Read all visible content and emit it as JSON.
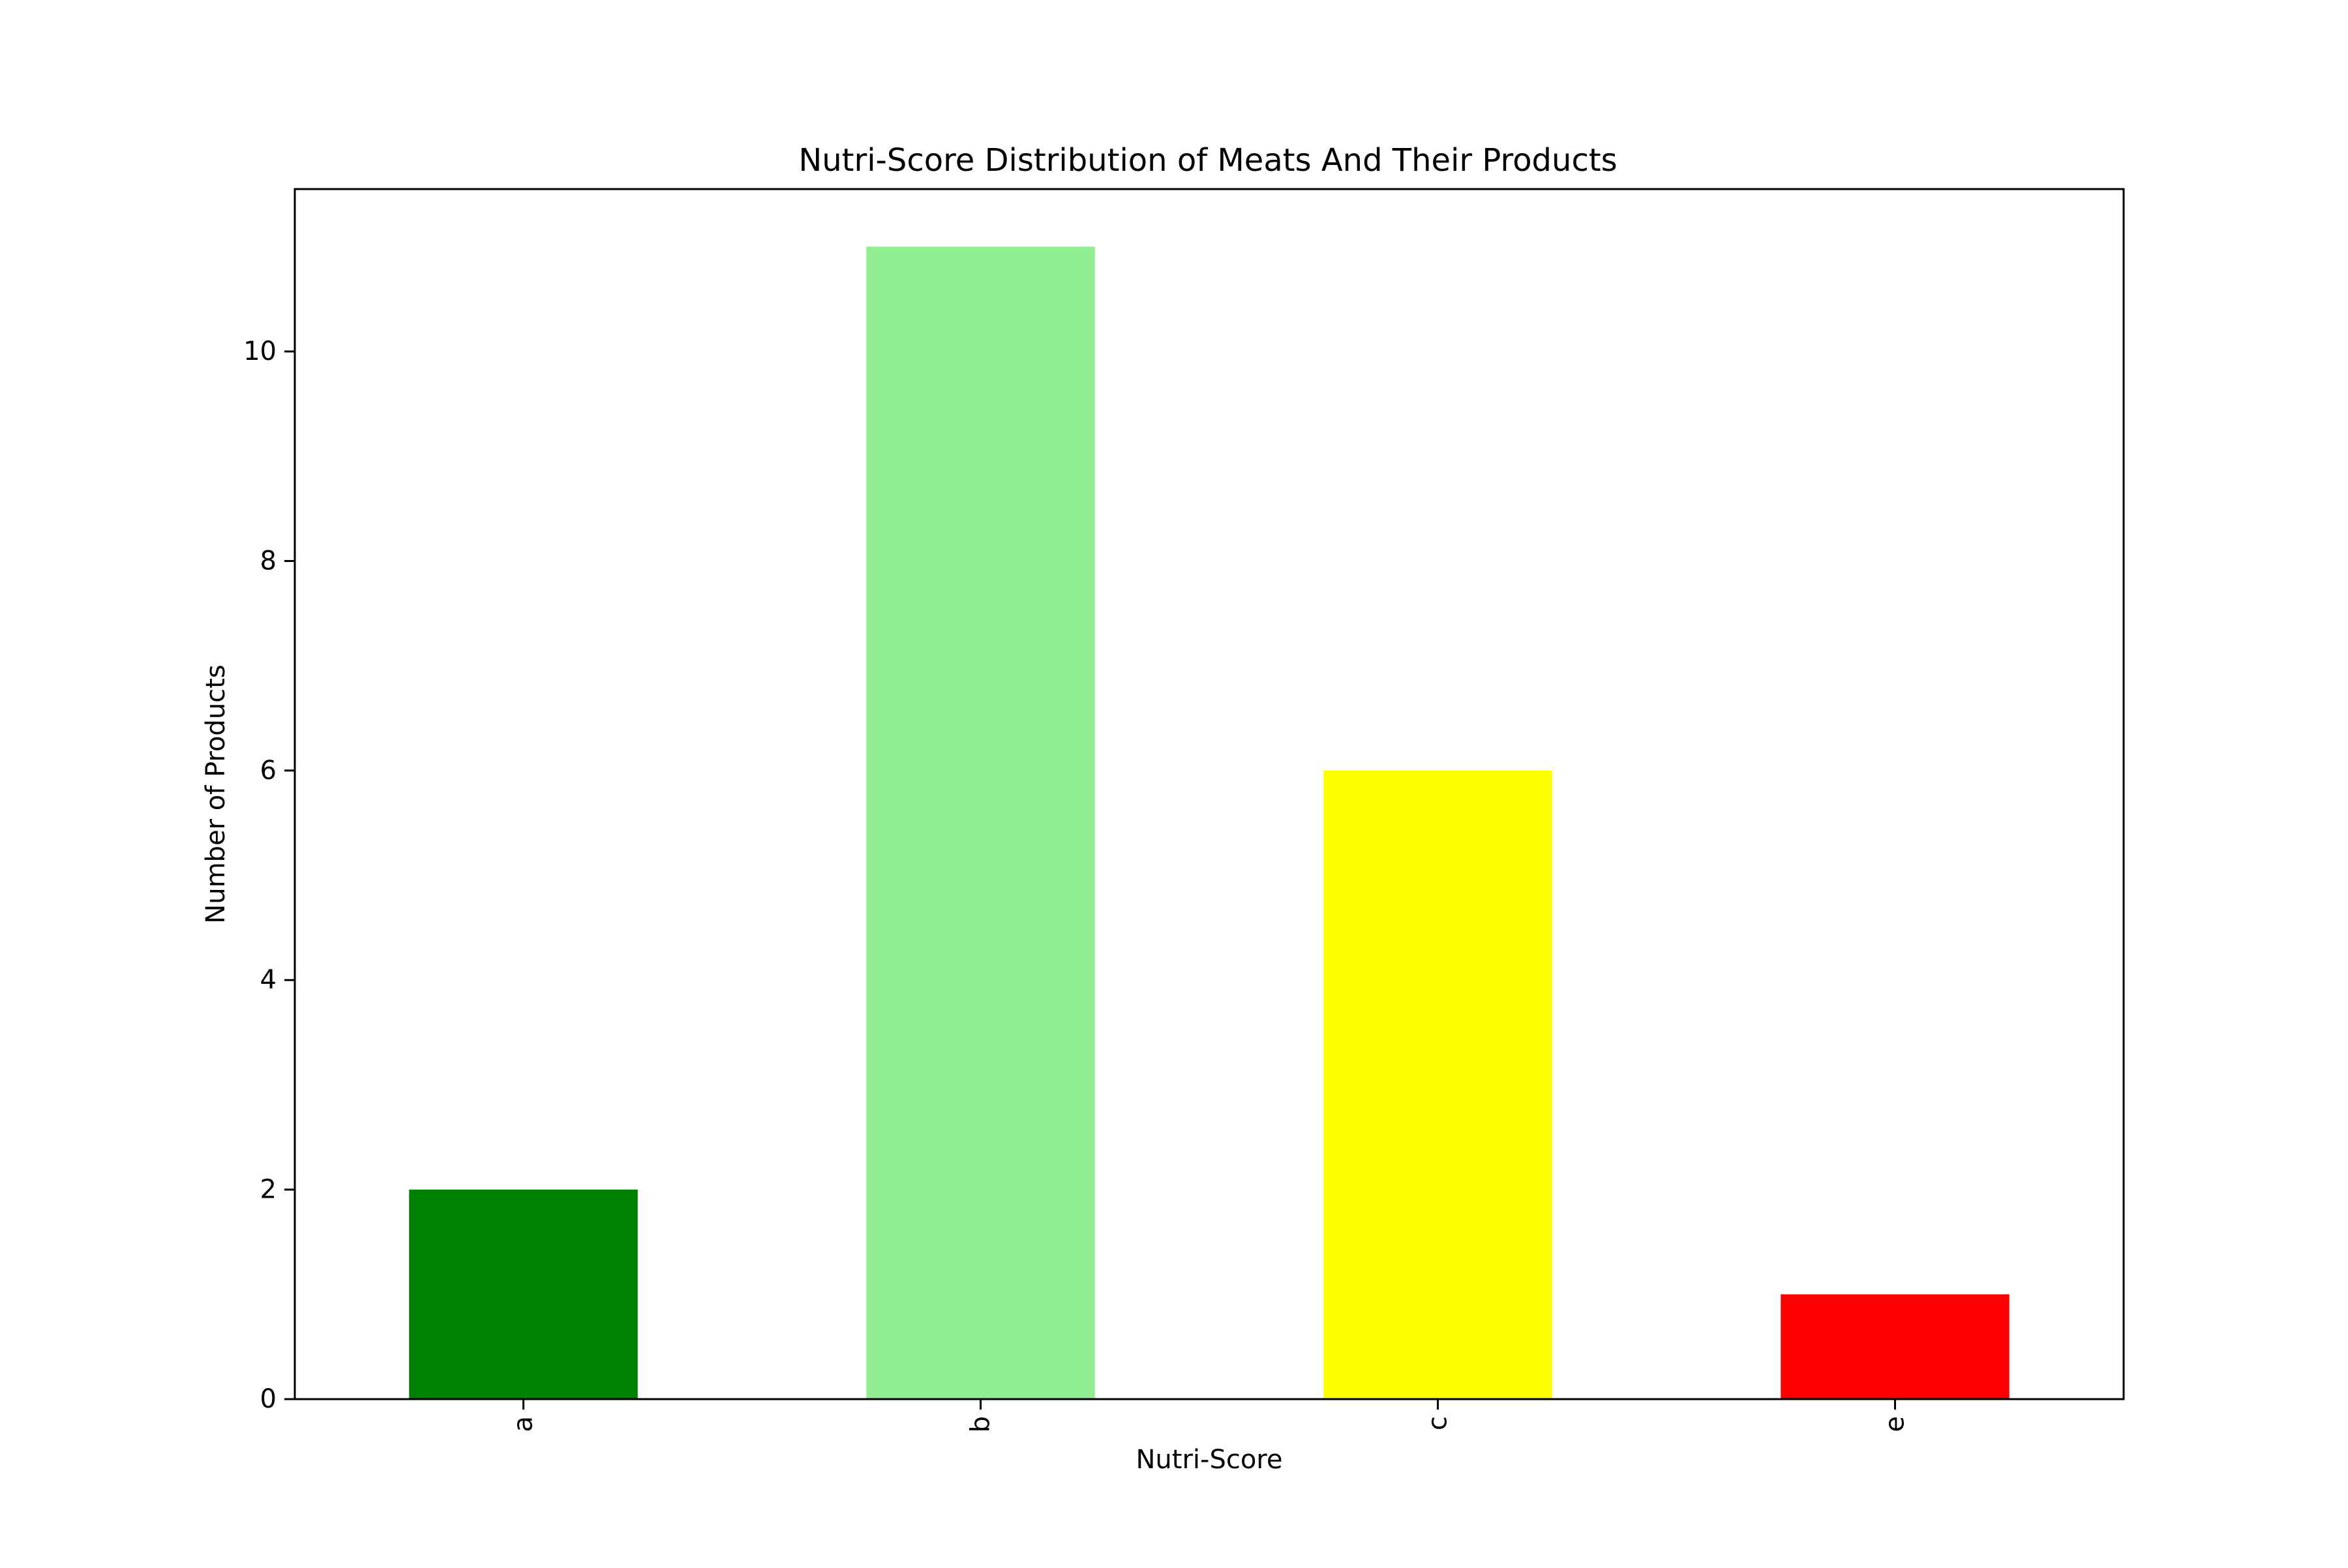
{
  "chart_data": {
    "type": "bar",
    "title": "Nutri-Score Distribution of Meats And Their Products",
    "xlabel": "Nutri-Score",
    "ylabel": "Number of Products",
    "categories": [
      "a",
      "b",
      "c",
      "e"
    ],
    "values": [
      2,
      11,
      6,
      1
    ],
    "colors": [
      "#008000",
      "#90ee90",
      "#ffff00",
      "#ff0000"
    ],
    "ylim": [
      0,
      11.55
    ],
    "yticks": [
      0,
      2,
      4,
      6,
      8,
      10
    ],
    "ytick_labels": [
      "0",
      "2",
      "4",
      "6",
      "8",
      "10"
    ],
    "grid": false,
    "legend": false
  }
}
